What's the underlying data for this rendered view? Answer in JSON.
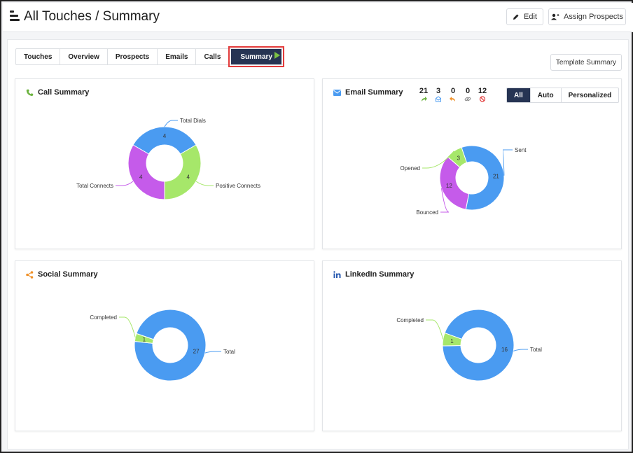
{
  "header": {
    "title": "All Touches / Summary",
    "edit_label": "Edit",
    "assign_label": "Assign Prospects"
  },
  "tabs": [
    {
      "label": "Touches"
    },
    {
      "label": "Overview"
    },
    {
      "label": "Prospects"
    },
    {
      "label": "Emails"
    },
    {
      "label": "Calls"
    },
    {
      "label": "Summary",
      "active": true
    }
  ],
  "template_summary_label": "Template Summary",
  "colors": {
    "blue": "#4a9bf1",
    "green": "#a6e76a",
    "purple": "#c55bea",
    "navy": "#263453",
    "highlight": "#e23b3b"
  },
  "call_summary": {
    "title": "Call Summary",
    "icon": "phone-icon",
    "chart_data": {
      "type": "pie",
      "donut": true,
      "segments": [
        {
          "label": "Total Dials",
          "value": 4,
          "color": "#4a9bf1"
        },
        {
          "label": "Positive Connects",
          "value": 4,
          "color": "#a6e76a"
        },
        {
          "label": "Total Connects",
          "value": 4,
          "color": "#c55bea"
        }
      ]
    }
  },
  "email_summary": {
    "title": "Email Summary",
    "icon": "envelope-icon",
    "stats": [
      {
        "value": "21",
        "icon": "forward-icon",
        "color": "#6cb33f"
      },
      {
        "value": "3",
        "icon": "opened-envelope-icon",
        "color": "#4a9bf1"
      },
      {
        "value": "0",
        "icon": "reply-icon",
        "color": "#f0922b"
      },
      {
        "value": "0",
        "icon": "link-icon",
        "color": "#888888"
      },
      {
        "value": "12",
        "icon": "ban-icon",
        "color": "#e23b3b"
      }
    ],
    "filters": [
      {
        "label": "All",
        "active": true
      },
      {
        "label": "Auto"
      },
      {
        "label": "Personalized"
      }
    ],
    "chart_data": {
      "type": "pie",
      "donut": true,
      "segments": [
        {
          "label": "Sent",
          "value": 21,
          "color": "#4a9bf1"
        },
        {
          "label": "Bounced",
          "value": 12,
          "color": "#c55bea"
        },
        {
          "label": "Opened",
          "value": 3,
          "color": "#a6e76a"
        }
      ]
    }
  },
  "social_summary": {
    "title": "Social Summary",
    "icon": "share-icon",
    "chart_data": {
      "type": "pie",
      "donut": true,
      "segments": [
        {
          "label": "Total",
          "value": 27,
          "color": "#4a9bf1"
        },
        {
          "label": "Completed",
          "value": 1,
          "color": "#a6e76a"
        }
      ]
    }
  },
  "linkedin_summary": {
    "title": "LinkedIn Summary",
    "icon": "linkedin-icon",
    "chart_data": {
      "type": "pie",
      "donut": true,
      "segments": [
        {
          "label": "Total",
          "value": 16,
          "color": "#4a9bf1"
        },
        {
          "label": "Completed",
          "value": 1,
          "color": "#a6e76a"
        }
      ]
    }
  }
}
